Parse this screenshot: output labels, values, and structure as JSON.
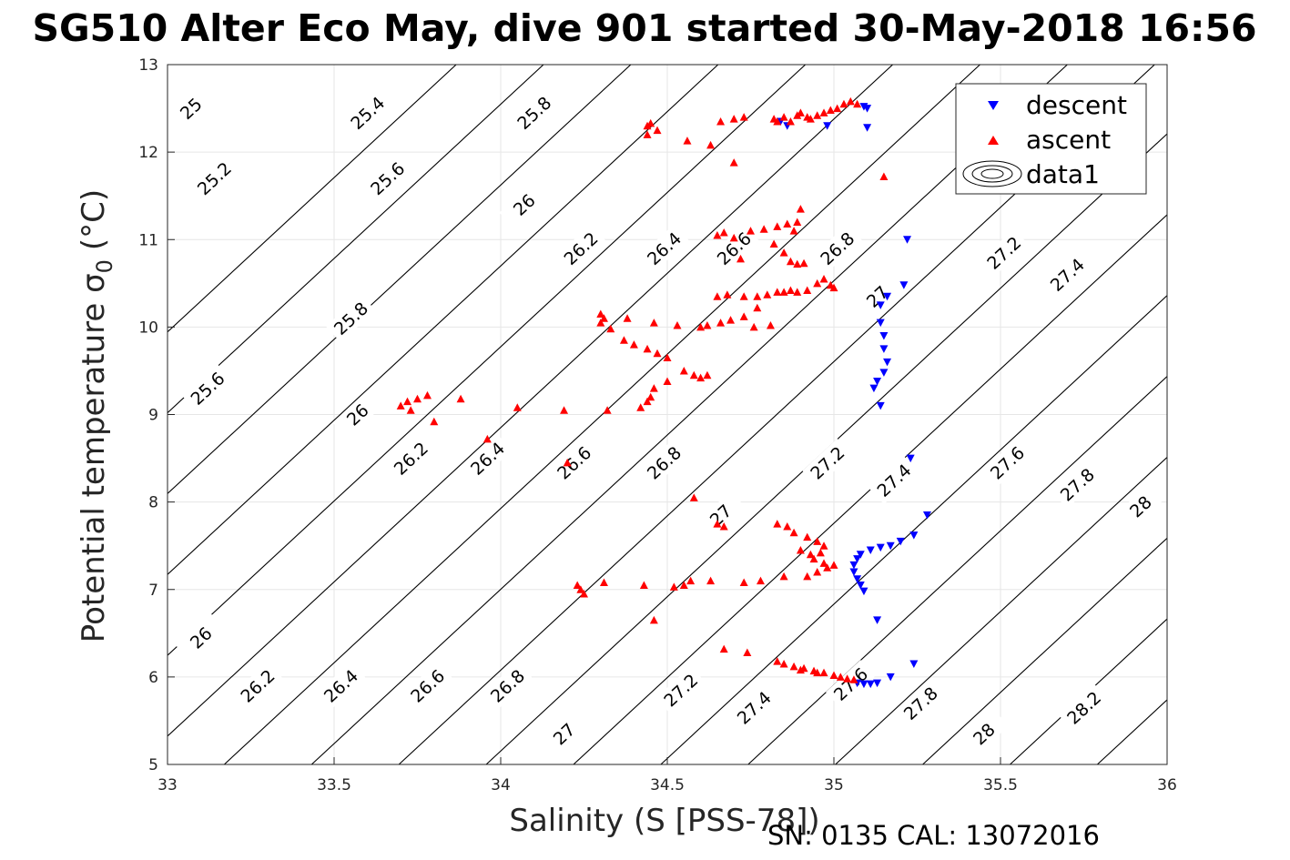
{
  "chart_data": {
    "type": "scatter",
    "title": "SG510 Alter Eco May, dive 901 started 30-May-2018 16:56",
    "xlabel": "Salinity (S [PSS-78])",
    "ylabel": "Potential temperature σ",
    "ylabel_sub": "0",
    "ylabel_unit": "(°C)",
    "footer": "SN: 0135  CAL: 13072016",
    "xlim": [
      33,
      36
    ],
    "ylim": [
      5,
      13
    ],
    "x_ticks": [
      "33",
      "33.5",
      "34",
      "34.5",
      "35",
      "35.5",
      "36"
    ],
    "y_ticks": [
      "5",
      "6",
      "7",
      "8",
      "9",
      "10",
      "11",
      "12",
      "13"
    ],
    "grid": true,
    "legend_position": "top-right",
    "legend": [
      {
        "label": "descent",
        "marker": "triangle-down",
        "color": "#0000ff"
      },
      {
        "label": "ascent",
        "marker": "triangle-up",
        "color": "#ff0000"
      },
      {
        "label": "data1",
        "marker": "contour",
        "color": "#000000"
      }
    ],
    "isopycnals": {
      "levels": [
        25.0,
        25.2,
        25.4,
        25.6,
        25.8,
        26.0,
        26.2,
        26.4,
        26.6,
        26.8,
        27.0,
        27.2,
        27.4,
        27.6,
        27.8,
        28.0,
        28.2
      ],
      "labels": [
        {
          "text": "25",
          "x": 33.07,
          "y": 12.5
        },
        {
          "text": "25.4",
          "x": 33.6,
          "y": 12.45
        },
        {
          "text": "25.8",
          "x": 34.1,
          "y": 12.45
        },
        {
          "text": "25.2",
          "x": 33.14,
          "y": 11.7
        },
        {
          "text": "25.6",
          "x": 33.66,
          "y": 11.7
        },
        {
          "text": "26",
          "x": 34.07,
          "y": 11.4
        },
        {
          "text": "26.2",
          "x": 34.24,
          "y": 10.9
        },
        {
          "text": "26.4",
          "x": 34.49,
          "y": 10.9
        },
        {
          "text": "26.6",
          "x": 34.7,
          "y": 10.9
        },
        {
          "text": "26.8",
          "x": 35.01,
          "y": 10.9
        },
        {
          "text": "27",
          "x": 35.13,
          "y": 10.35
        },
        {
          "text": "27.2",
          "x": 35.51,
          "y": 10.85
        },
        {
          "text": "27.4",
          "x": 35.7,
          "y": 10.6
        },
        {
          "text": "25.8",
          "x": 33.55,
          "y": 10.1
        },
        {
          "text": "25.6",
          "x": 33.12,
          "y": 9.3
        },
        {
          "text": "26",
          "x": 33.57,
          "y": 9.0
        },
        {
          "text": "26.2",
          "x": 33.73,
          "y": 8.5
        },
        {
          "text": "26.4",
          "x": 33.96,
          "y": 8.5
        },
        {
          "text": "26.6",
          "x": 34.22,
          "y": 8.45
        },
        {
          "text": "26.8",
          "x": 34.49,
          "y": 8.45
        },
        {
          "text": "27.2",
          "x": 34.98,
          "y": 8.45
        },
        {
          "text": "27.4",
          "x": 35.18,
          "y": 8.25
        },
        {
          "text": "27.6",
          "x": 35.52,
          "y": 8.45
        },
        {
          "text": "27.8",
          "x": 35.73,
          "y": 8.2
        },
        {
          "text": "28",
          "x": 35.92,
          "y": 7.95
        },
        {
          "text": "27",
          "x": 34.66,
          "y": 7.85
        },
        {
          "text": "26",
          "x": 33.1,
          "y": 6.45
        },
        {
          "text": "26.2",
          "x": 33.27,
          "y": 5.9
        },
        {
          "text": "26.4",
          "x": 33.52,
          "y": 5.9
        },
        {
          "text": "26.6",
          "x": 33.78,
          "y": 5.9
        },
        {
          "text": "26.8",
          "x": 34.02,
          "y": 5.9
        },
        {
          "text": "27.2",
          "x": 34.54,
          "y": 5.85
        },
        {
          "text": "27.4",
          "x": 34.76,
          "y": 5.65
        },
        {
          "text": "27.6",
          "x": 35.05,
          "y": 5.92
        },
        {
          "text": "27.8",
          "x": 35.26,
          "y": 5.7
        },
        {
          "text": "27",
          "x": 34.19,
          "y": 5.35
        },
        {
          "text": "28",
          "x": 35.45,
          "y": 5.35
        },
        {
          "text": "28.2",
          "x": 35.75,
          "y": 5.65
        }
      ]
    },
    "series": [
      {
        "name": "descent",
        "marker": "triangle-down",
        "color": "#0000ff",
        "points": [
          [
            34.84,
            12.35
          ],
          [
            34.86,
            12.3
          ],
          [
            34.98,
            12.3
          ],
          [
            35.09,
            12.52
          ],
          [
            35.1,
            12.5
          ],
          [
            35.1,
            12.28
          ],
          [
            35.22,
            11.0
          ],
          [
            35.21,
            10.48
          ],
          [
            35.16,
            10.35
          ],
          [
            35.14,
            10.25
          ],
          [
            35.14,
            10.05
          ],
          [
            35.15,
            9.9
          ],
          [
            35.15,
            9.75
          ],
          [
            35.16,
            9.6
          ],
          [
            35.15,
            9.48
          ],
          [
            35.13,
            9.38
          ],
          [
            35.12,
            9.3
          ],
          [
            35.14,
            9.1
          ],
          [
            35.23,
            8.5
          ],
          [
            35.28,
            7.85
          ],
          [
            35.24,
            7.62
          ],
          [
            35.2,
            7.55
          ],
          [
            35.17,
            7.5
          ],
          [
            35.14,
            7.48
          ],
          [
            35.11,
            7.45
          ],
          [
            35.08,
            7.4
          ],
          [
            35.07,
            7.35
          ],
          [
            35.06,
            7.28
          ],
          [
            35.06,
            7.2
          ],
          [
            35.07,
            7.12
          ],
          [
            35.08,
            7.05
          ],
          [
            35.09,
            6.98
          ],
          [
            35.13,
            6.65
          ],
          [
            35.24,
            6.15
          ],
          [
            35.17,
            6.0
          ],
          [
            35.13,
            5.93
          ],
          [
            35.11,
            5.92
          ],
          [
            35.09,
            5.92
          ],
          [
            35.07,
            5.93
          ]
        ]
      },
      {
        "name": "ascent",
        "marker": "triangle-up",
        "color": "#ff0000",
        "points": [
          [
            34.44,
            12.3
          ],
          [
            34.45,
            12.33
          ],
          [
            34.44,
            12.2
          ],
          [
            34.47,
            12.25
          ],
          [
            34.56,
            12.13
          ],
          [
            34.63,
            12.08
          ],
          [
            34.66,
            12.35
          ],
          [
            34.7,
            12.38
          ],
          [
            34.73,
            12.4
          ],
          [
            34.82,
            12.38
          ],
          [
            34.83,
            12.35
          ],
          [
            34.85,
            12.4
          ],
          [
            34.87,
            12.35
          ],
          [
            34.9,
            12.45
          ],
          [
            34.92,
            12.4
          ],
          [
            34.95,
            12.42
          ],
          [
            34.97,
            12.45
          ],
          [
            34.99,
            12.48
          ],
          [
            35.01,
            12.5
          ],
          [
            35.03,
            12.55
          ],
          [
            35.05,
            12.58
          ],
          [
            35.07,
            12.55
          ],
          [
            34.93,
            12.38
          ],
          [
            34.89,
            12.42
          ],
          [
            35.15,
            11.72
          ],
          [
            34.7,
            11.88
          ],
          [
            34.65,
            11.05
          ],
          [
            34.67,
            11.08
          ],
          [
            34.7,
            11.02
          ],
          [
            34.75,
            11.1
          ],
          [
            34.79,
            11.12
          ],
          [
            34.83,
            11.15
          ],
          [
            34.86,
            11.18
          ],
          [
            34.89,
            11.2
          ],
          [
            34.9,
            11.35
          ],
          [
            34.88,
            11.1
          ],
          [
            34.82,
            10.95
          ],
          [
            34.85,
            10.85
          ],
          [
            34.87,
            10.75
          ],
          [
            34.89,
            10.72
          ],
          [
            34.91,
            10.73
          ],
          [
            34.72,
            10.78
          ],
          [
            34.65,
            10.35
          ],
          [
            34.68,
            10.37
          ],
          [
            34.73,
            10.35
          ],
          [
            34.77,
            10.35
          ],
          [
            34.8,
            10.37
          ],
          [
            34.83,
            10.4
          ],
          [
            34.85,
            10.4
          ],
          [
            34.87,
            10.42
          ],
          [
            34.89,
            10.4
          ],
          [
            34.92,
            10.42
          ],
          [
            34.95,
            10.5
          ],
          [
            34.97,
            10.55
          ],
          [
            34.99,
            10.48
          ],
          [
            35.0,
            10.45
          ],
          [
            34.77,
            10.22
          ],
          [
            34.73,
            10.12
          ],
          [
            34.69,
            10.08
          ],
          [
            34.66,
            10.05
          ],
          [
            34.62,
            10.02
          ],
          [
            34.6,
            10.0
          ],
          [
            34.76,
            10.0
          ],
          [
            34.81,
            10.02
          ],
          [
            34.3,
            10.15
          ],
          [
            34.31,
            10.1
          ],
          [
            34.3,
            10.05
          ],
          [
            34.33,
            9.98
          ],
          [
            34.38,
            10.1
          ],
          [
            34.46,
            10.05
          ],
          [
            34.53,
            10.02
          ],
          [
            34.37,
            9.85
          ],
          [
            34.4,
            9.8
          ],
          [
            34.44,
            9.75
          ],
          [
            34.47,
            9.7
          ],
          [
            34.5,
            9.65
          ],
          [
            34.55,
            9.5
          ],
          [
            34.58,
            9.45
          ],
          [
            34.6,
            9.42
          ],
          [
            34.62,
            9.45
          ],
          [
            34.5,
            9.38
          ],
          [
            34.46,
            9.3
          ],
          [
            34.45,
            9.2
          ],
          [
            34.44,
            9.15
          ],
          [
            34.42,
            9.08
          ],
          [
            34.32,
            9.05
          ],
          [
            34.19,
            9.05
          ],
          [
            34.05,
            9.08
          ],
          [
            33.88,
            9.18
          ],
          [
            33.78,
            9.22
          ],
          [
            33.75,
            9.18
          ],
          [
            33.72,
            9.15
          ],
          [
            33.7,
            9.1
          ],
          [
            33.73,
            9.05
          ],
          [
            33.8,
            8.92
          ],
          [
            33.96,
            8.72
          ],
          [
            34.2,
            8.45
          ],
          [
            34.58,
            8.05
          ],
          [
            34.65,
            7.75
          ],
          [
            34.67,
            7.72
          ],
          [
            34.83,
            7.75
          ],
          [
            34.86,
            7.72
          ],
          [
            34.88,
            7.65
          ],
          [
            34.92,
            7.6
          ],
          [
            34.95,
            7.55
          ],
          [
            34.97,
            7.5
          ],
          [
            34.96,
            7.42
          ],
          [
            34.93,
            7.4
          ],
          [
            34.9,
            7.45
          ],
          [
            34.94,
            7.35
          ],
          [
            34.97,
            7.3
          ],
          [
            35.0,
            7.28
          ],
          [
            34.98,
            7.25
          ],
          [
            34.95,
            7.2
          ],
          [
            34.92,
            7.15
          ],
          [
            34.85,
            7.15
          ],
          [
            34.78,
            7.1
          ],
          [
            34.73,
            7.08
          ],
          [
            34.63,
            7.1
          ],
          [
            34.57,
            7.1
          ],
          [
            34.55,
            7.05
          ],
          [
            34.52,
            7.03
          ],
          [
            34.43,
            7.05
          ],
          [
            34.31,
            7.08
          ],
          [
            34.23,
            7.05
          ],
          [
            34.24,
            7.0
          ],
          [
            34.25,
            6.95
          ],
          [
            34.46,
            6.65
          ],
          [
            34.67,
            6.32
          ],
          [
            34.74,
            6.28
          ],
          [
            34.83,
            6.18
          ],
          [
            34.85,
            6.15
          ],
          [
            34.88,
            6.12
          ],
          [
            34.91,
            6.1
          ],
          [
            34.94,
            6.07
          ],
          [
            34.97,
            6.05
          ],
          [
            35.0,
            6.02
          ],
          [
            35.02,
            6.0
          ],
          [
            35.04,
            5.98
          ],
          [
            35.06,
            5.97
          ],
          [
            34.9,
            6.08
          ],
          [
            34.95,
            6.05
          ]
        ]
      }
    ]
  }
}
